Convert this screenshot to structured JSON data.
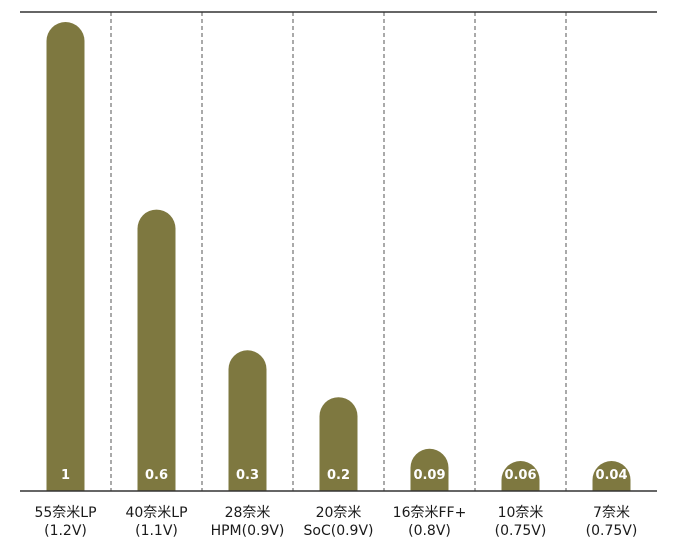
{
  "chart_data": {
    "type": "bar",
    "categories": [
      [
        "55奈米LP",
        "(1.2V)"
      ],
      [
        "40奈米LP",
        "(1.1V)"
      ],
      [
        "28奈米",
        "HPM(0.9V)"
      ],
      [
        "20奈米",
        "SoC(0.9V)"
      ],
      [
        "16奈米FF+",
        "(0.8V)"
      ],
      [
        "10奈米",
        "(0.75V)"
      ],
      [
        "7奈米",
        "(0.75V)"
      ]
    ],
    "values": [
      1,
      0.6,
      0.3,
      0.2,
      0.09,
      0.06,
      0.04
    ],
    "value_labels": [
      "1",
      "0.6",
      "0.3",
      "0.2",
      "0.09",
      "0.06",
      "0.04"
    ],
    "grid": "vertical dashed separators",
    "colors": {
      "bar": "#7e7840",
      "label": "#ffffff",
      "axis": "#333333",
      "grid": "#555555"
    }
  }
}
